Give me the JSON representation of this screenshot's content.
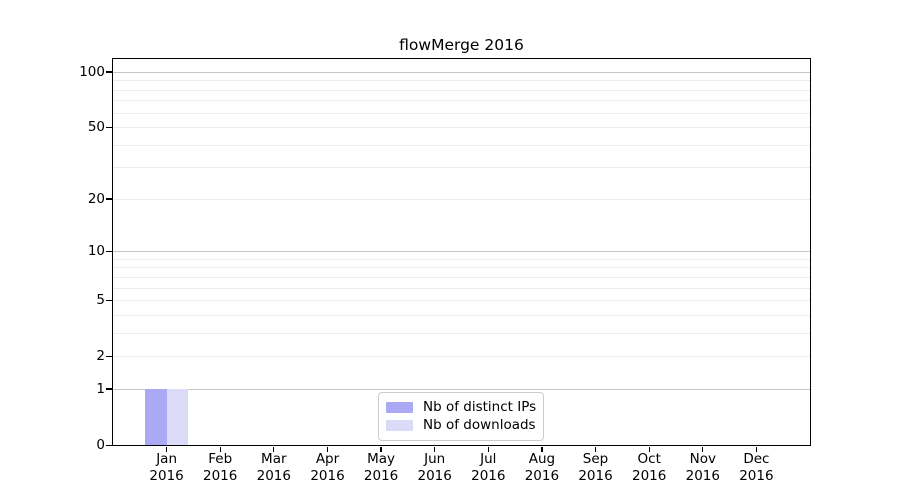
{
  "chart_data": {
    "type": "bar",
    "title": "flowMerge 2016",
    "categories": [
      "Jan 2016",
      "Feb 2016",
      "Mar 2016",
      "Apr 2016",
      "May 2016",
      "Jun 2016",
      "Jul 2016",
      "Aug 2016",
      "Sep 2016",
      "Oct 2016",
      "Nov 2016",
      "Dec 2016"
    ],
    "month_labels": [
      "Jan",
      "Feb",
      "Mar",
      "Apr",
      "May",
      "Jun",
      "Jul",
      "Aug",
      "Sep",
      "Oct",
      "Nov",
      "Dec"
    ],
    "year_label": "2016",
    "series": [
      {
        "name": "Nb of distinct IPs",
        "color": "#a9a9f5",
        "values": [
          1,
          0,
          0,
          0,
          0,
          0,
          0,
          0,
          0,
          0,
          0,
          0
        ]
      },
      {
        "name": "Nb of downloads",
        "color": "#dbdbf8",
        "values": [
          1,
          0,
          0,
          0,
          0,
          0,
          0,
          0,
          0,
          0,
          0,
          0
        ]
      }
    ],
    "xlabel": "",
    "ylabel": "",
    "yscale": "log1p",
    "ylim": [
      0,
      118
    ],
    "yticks": [
      0,
      1,
      2,
      5,
      10,
      20,
      50,
      100
    ],
    "gridlines_major": [
      1,
      10,
      100
    ],
    "gridlines_minor": [
      2,
      3,
      4,
      5,
      6,
      7,
      8,
      9,
      20,
      30,
      40,
      50,
      60,
      70,
      80,
      90
    ],
    "grid": "horizontal",
    "legend": {
      "position": "lower-center-inside"
    },
    "colors": {
      "major_grid": "#c6c6c6",
      "minor_grid": "#ececec",
      "spine": "#000000",
      "text": "#000000",
      "legend_border": "#cccccc"
    }
  }
}
